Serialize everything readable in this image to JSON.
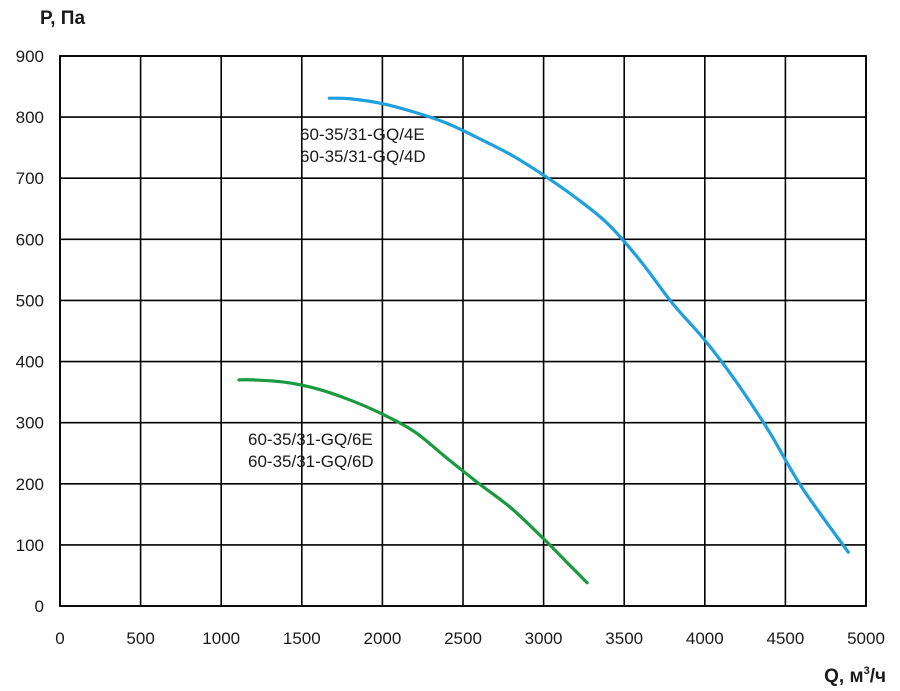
{
  "chart_data": {
    "type": "line",
    "title": "",
    "ylabel": "P, Па",
    "xlabel_main": "Q, м",
    "xlabel_sup": "3",
    "xlabel_tail": "/ч",
    "xlim": [
      0,
      5000
    ],
    "ylim": [
      0,
      900
    ],
    "xticks": [
      0,
      500,
      1000,
      1500,
      2000,
      2500,
      3000,
      3500,
      4000,
      4500,
      5000
    ],
    "yticks": [
      0,
      100,
      200,
      300,
      400,
      500,
      600,
      700,
      800,
      900
    ],
    "grid": true,
    "series": [
      {
        "name": "60-35/31-GQ/4E",
        "name2": "60-35/31-GQ/4D",
        "color": "#1ea0dc",
        "x": [
          1670,
          1800,
          2000,
          2200,
          2400,
          2600,
          2800,
          3000,
          3200,
          3400,
          3600,
          3800,
          4000,
          4200,
          4400,
          4600,
          4890
        ],
        "y": [
          831,
          830,
          822,
          808,
          790,
          765,
          738,
          705,
          668,
          625,
          565,
          495,
          435,
          365,
          285,
          195,
          88
        ]
      },
      {
        "name": "60-35/31-GQ/6E",
        "name2": "60-35/31-GQ/6D",
        "color": "#1a9a3e",
        "x": [
          1110,
          1200,
          1400,
          1600,
          1800,
          2000,
          2200,
          2400,
          2600,
          2800,
          3000,
          3150,
          3270
        ],
        "y": [
          370,
          370,
          366,
          355,
          337,
          314,
          285,
          242,
          200,
          160,
          110,
          70,
          38
        ]
      }
    ]
  }
}
